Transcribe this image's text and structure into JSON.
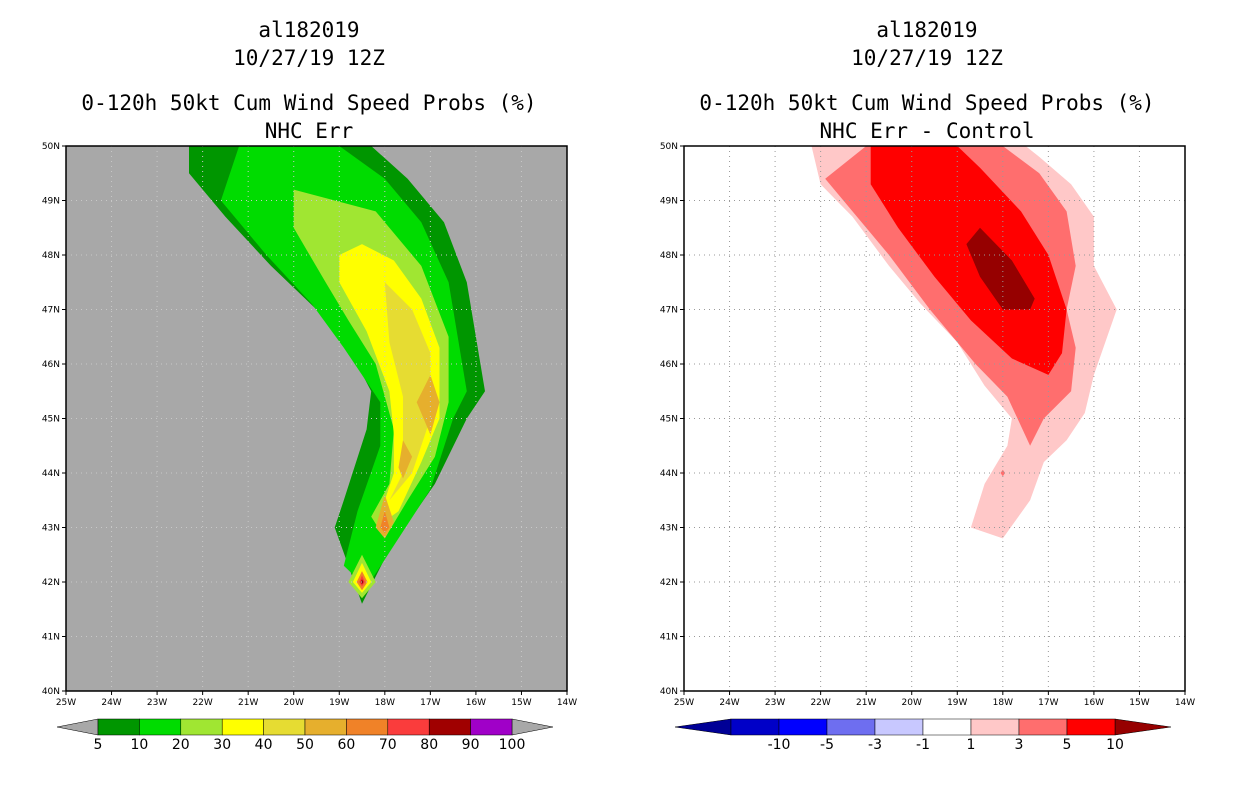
{
  "chart_data": [
    {
      "type": "contour-map",
      "id": "left",
      "title": "al182019",
      "subtitle": "10/27/19 12Z",
      "product": "0-120h 50kt Cum Wind Speed Probs (%)",
      "variant": "NHC Err",
      "x_ticks": [
        "25W",
        "24W",
        "23W",
        "22W",
        "21W",
        "20W",
        "19W",
        "18W",
        "17W",
        "16W",
        "15W",
        "14W"
      ],
      "y_ticks": [
        "40N",
        "41N",
        "42N",
        "43N",
        "44N",
        "45N",
        "46N",
        "47N",
        "48N",
        "49N",
        "50N"
      ],
      "lon_range": [
        -25,
        -14
      ],
      "lat_range": [
        40,
        50
      ],
      "background_color": "#a8a8a8",
      "colorbar": {
        "labels": [
          "5",
          "10",
          "20",
          "30",
          "40",
          "50",
          "60",
          "70",
          "80",
          "90",
          "100"
        ],
        "colors": [
          "#009600",
          "#00dc00",
          "#a0e632",
          "#ffff00",
          "#e6dc32",
          "#e6af2d",
          "#f08228",
          "#fa3c3c",
          "#a00000",
          "#a000c8"
        ],
        "end_color": "#a8a8a8"
      },
      "contours": [
        {
          "level": 5,
          "color": "#009600",
          "polygon": [
            [
              -22.3,
              50
            ],
            [
              -22.3,
              49.5
            ],
            [
              -21.5,
              48.7
            ],
            [
              -20.5,
              47.8
            ],
            [
              -19.5,
              47.0
            ],
            [
              -18.8,
              46.3
            ],
            [
              -18.3,
              45.5
            ],
            [
              -18.4,
              44.8
            ],
            [
              -18.9,
              43.5
            ],
            [
              -19.1,
              43.0
            ],
            [
              -18.5,
              41.6
            ],
            [
              -17.9,
              42.6
            ],
            [
              -16.9,
              43.8
            ],
            [
              -16.2,
              45.0
            ],
            [
              -15.8,
              45.5
            ],
            [
              -16.2,
              47.5
            ],
            [
              -16.7,
              48.6
            ],
            [
              -17.5,
              49.4
            ],
            [
              -18.3,
              50
            ]
          ]
        },
        {
          "level": 10,
          "color": "#00dc00",
          "polygon": [
            [
              -21.2,
              50
            ],
            [
              -21.6,
              49.0
            ],
            [
              -20.6,
              48.0
            ],
            [
              -19.6,
              47.1
            ],
            [
              -18.9,
              46.3
            ],
            [
              -18.1,
              45.3
            ],
            [
              -18.1,
              44.5
            ],
            [
              -18.6,
              43.3
            ],
            [
              -18.9,
              42.3
            ],
            [
              -18.4,
              41.9
            ],
            [
              -17.7,
              42.8
            ],
            [
              -17.0,
              43.7
            ],
            [
              -16.5,
              45.0
            ],
            [
              -16.2,
              45.5
            ],
            [
              -16.6,
              47.5
            ],
            [
              -17.2,
              48.6
            ],
            [
              -18.0,
              49.4
            ],
            [
              -19.0,
              50
            ]
          ]
        },
        {
          "level": 20,
          "color": "#a0e632",
          "polygon": [
            [
              -20.0,
              49.2
            ],
            [
              -20.0,
              48.5
            ],
            [
              -19.3,
              47.5
            ],
            [
              -18.8,
              46.8
            ],
            [
              -18.2,
              46.0
            ],
            [
              -17.8,
              44.8
            ],
            [
              -17.9,
              43.8
            ],
            [
              -18.3,
              43.2
            ],
            [
              -18.0,
              42.8
            ],
            [
              -17.5,
              43.5
            ],
            [
              -16.9,
              44.3
            ],
            [
              -16.6,
              45.3
            ],
            [
              -16.6,
              46.5
            ],
            [
              -17.2,
              47.8
            ],
            [
              -18.2,
              48.8
            ]
          ]
        },
        {
          "level": 30,
          "color": "#ffff00",
          "polygon": [
            [
              -19.0,
              48.0
            ],
            [
              -19.0,
              47.5
            ],
            [
              -18.4,
              46.6
            ],
            [
              -17.9,
              45.5
            ],
            [
              -17.8,
              44.7
            ],
            [
              -17.8,
              44.0
            ],
            [
              -18.2,
              43.0
            ],
            [
              -17.7,
              43.3
            ],
            [
              -17.2,
              44.2
            ],
            [
              -16.8,
              45.0
            ],
            [
              -16.8,
              46.3
            ],
            [
              -17.2,
              47.2
            ],
            [
              -17.8,
              47.9
            ],
            [
              -18.5,
              48.2
            ]
          ]
        },
        {
          "level": 40,
          "color": "#e6dc32",
          "polygon": [
            [
              -18.0,
              47.5
            ],
            [
              -17.9,
              46.4
            ],
            [
              -17.6,
              45.4
            ],
            [
              -17.6,
              44.0
            ],
            [
              -17.9,
              43.5
            ],
            [
              -17.4,
              44.0
            ],
            [
              -17.0,
              45.0
            ],
            [
              -17.0,
              46.2
            ],
            [
              -17.4,
              47.0
            ]
          ]
        },
        {
          "level": 50,
          "color": "#e6af2d",
          "polygon": [
            [
              -17.0,
              45.8
            ],
            [
              -17.3,
              45.3
            ],
            [
              -17.0,
              44.7
            ],
            [
              -16.8,
              45.3
            ]
          ]
        },
        {
          "level": 50,
          "color": "#e6af2d",
          "polygon": [
            [
              -17.6,
              44.6
            ],
            [
              -17.7,
              44.1
            ],
            [
              -17.6,
              43.9
            ],
            [
              -17.4,
              44.3
            ]
          ]
        },
        {
          "level": 50,
          "color": "#e6af2d",
          "polygon": [
            [
              -18.0,
              43.6
            ],
            [
              -18.2,
              43.0
            ],
            [
              -18.0,
              42.8
            ],
            [
              -17.8,
              43.1
            ]
          ]
        },
        {
          "level": 60,
          "color": "#f08228",
          "polygon": [
            [
              -18.0,
              43.3
            ],
            [
              -18.1,
              43.0
            ],
            [
              -18.0,
              42.9
            ],
            [
              -17.9,
              43.0
            ]
          ]
        },
        {
          "level": 20,
          "color": "#a0e632",
          "polygon": [
            [
              -18.5,
              42.5
            ],
            [
              -18.8,
              42.0
            ],
            [
              -18.5,
              41.7
            ],
            [
              -18.2,
              42.0
            ]
          ]
        },
        {
          "level": 30,
          "color": "#ffff00",
          "polygon": [
            [
              -18.5,
              42.35
            ],
            [
              -18.7,
              42.0
            ],
            [
              -18.5,
              41.8
            ],
            [
              -18.3,
              42.0
            ]
          ]
        },
        {
          "level": 60,
          "color": "#f08228",
          "polygon": [
            [
              -18.5,
              42.2
            ],
            [
              -18.62,
              42.0
            ],
            [
              -18.5,
              41.85
            ],
            [
              -18.38,
              42.0
            ]
          ]
        },
        {
          "level": 70,
          "color": "#fa3c3c",
          "polygon": [
            [
              -18.5,
              42.12
            ],
            [
              -18.56,
              42.0
            ],
            [
              -18.5,
              41.92
            ],
            [
              -18.44,
              42.0
            ]
          ]
        },
        {
          "level": 80,
          "color": "#a00000",
          "polygon": [
            [
              -18.5,
              42.05
            ],
            [
              -18.53,
              42.0
            ],
            [
              -18.5,
              41.96
            ],
            [
              -18.47,
              42.0
            ]
          ]
        }
      ]
    },
    {
      "type": "contour-map",
      "id": "right",
      "title": "al182019",
      "subtitle": "10/27/19 12Z",
      "product": "0-120h 50kt Cum Wind Speed Probs (%)",
      "variant": "NHC Err - Control",
      "x_ticks": [
        "25W",
        "24W",
        "23W",
        "22W",
        "21W",
        "20W",
        "19W",
        "18W",
        "17W",
        "16W",
        "15W",
        "14W"
      ],
      "y_ticks": [
        "40N",
        "41N",
        "42N",
        "43N",
        "44N",
        "45N",
        "46N",
        "47N",
        "48N",
        "49N",
        "50N"
      ],
      "lon_range": [
        -25,
        -14
      ],
      "lat_range": [
        40,
        50
      ],
      "background_color": "#ffffff",
      "colorbar": {
        "labels": [
          "-10",
          "-5",
          "-3",
          "-1",
          "1",
          "3",
          "5",
          "10"
        ],
        "colors": [
          "#0000c8",
          "#0000ff",
          "#6e6ef0",
          "#c8c8ff",
          "#ffffff",
          "#ffc8c8",
          "#ff6e6e",
          "#ff0000"
        ],
        "left_end_color": "#000096",
        "right_end_color": "#960000"
      },
      "contours": [
        {
          "level": 1,
          "color": "#ffc8c8",
          "polygon": [
            [
              -22.2,
              50
            ],
            [
              -22.0,
              49.3
            ],
            [
              -21.3,
              48.7
            ],
            [
              -20.5,
              47.8
            ],
            [
              -19.8,
              47.1
            ],
            [
              -19.0,
              46.4
            ],
            [
              -18.4,
              45.6
            ],
            [
              -17.8,
              45.0
            ],
            [
              -17.9,
              44.5
            ],
            [
              -18.4,
              43.8
            ],
            [
              -18.7,
              43.0
            ],
            [
              -18.0,
              42.8
            ],
            [
              -17.4,
              43.5
            ],
            [
              -17.1,
              44.2
            ],
            [
              -16.6,
              44.6
            ],
            [
              -16.2,
              45.1
            ],
            [
              -16.0,
              45.8
            ],
            [
              -15.5,
              47.0
            ],
            [
              -16.0,
              47.8
            ],
            [
              -16.0,
              48.7
            ],
            [
              -16.5,
              49.3
            ],
            [
              -17.2,
              49.8
            ],
            [
              -17.5,
              50
            ]
          ]
        },
        {
          "level": 3,
          "color": "#ff6e6e",
          "polygon": [
            [
              -21.0,
              50
            ],
            [
              -21.9,
              49.4
            ],
            [
              -21.3,
              48.8
            ],
            [
              -20.5,
              48.0
            ],
            [
              -19.6,
              47.0
            ],
            [
              -18.6,
              46.0
            ],
            [
              -17.9,
              45.4
            ],
            [
              -17.4,
              44.5
            ],
            [
              -17.1,
              45.0
            ],
            [
              -16.5,
              45.5
            ],
            [
              -16.4,
              46.3
            ],
            [
              -16.6,
              47.0
            ],
            [
              -16.4,
              47.8
            ],
            [
              -16.6,
              48.8
            ],
            [
              -17.2,
              49.5
            ],
            [
              -18.0,
              50
            ]
          ]
        },
        {
          "level": 5,
          "color": "#ff0000",
          "polygon": [
            [
              -20.9,
              50
            ],
            [
              -20.9,
              49.3
            ],
            [
              -20.3,
              48.5
            ],
            [
              -19.5,
              47.6
            ],
            [
              -18.7,
              46.8
            ],
            [
              -17.8,
              46.1
            ],
            [
              -17.0,
              45.8
            ],
            [
              -16.7,
              46.2
            ],
            [
              -16.6,
              47.0
            ],
            [
              -17.0,
              48.0
            ],
            [
              -17.6,
              48.8
            ],
            [
              -18.5,
              49.6
            ],
            [
              -19.0,
              50
            ]
          ]
        },
        {
          "level": 10,
          "color": "#960000",
          "polygon": [
            [
              -18.8,
              48.2
            ],
            [
              -18.5,
              48.5
            ],
            [
              -17.8,
              47.9
            ],
            [
              -17.3,
              47.2
            ],
            [
              -17.4,
              47.0
            ],
            [
              -18.0,
              47.0
            ],
            [
              -18.5,
              47.6
            ]
          ]
        },
        {
          "level": 1,
          "color": "#ffc8c8",
          "polygon": [
            [
              -18.0,
              44.1
            ],
            [
              -18.1,
              44.0
            ],
            [
              -18.0,
              43.9
            ],
            [
              -17.9,
              44.0
            ]
          ]
        },
        {
          "level": 3,
          "color": "#ff6e6e",
          "polygon": [
            [
              -18.0,
              44.06
            ],
            [
              -18.05,
              44.0
            ],
            [
              -18.0,
              43.94
            ],
            [
              -17.95,
              44.0
            ]
          ]
        }
      ]
    }
  ]
}
